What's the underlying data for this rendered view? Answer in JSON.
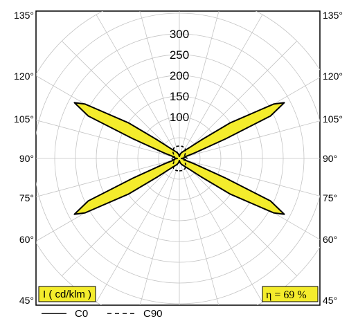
{
  "chart_data": {
    "type": "polar",
    "title": "",
    "unit_label": "I ( cd/klm )",
    "efficiency_label": "η = 69 %",
    "radial_ticks": [
      100,
      150,
      200,
      250,
      300
    ],
    "radial_tick_labels": [
      "100",
      "150",
      "200",
      "250",
      "300"
    ],
    "radial_max": 400,
    "angle_labels_left": [
      "135°",
      "120°",
      "105°",
      "90°",
      "75°",
      "60°",
      "45°"
    ],
    "angle_labels_right": [
      "135°",
      "120°",
      "105°",
      "90°",
      "75°",
      "60°",
      "45°"
    ],
    "grid": true,
    "legend_position": "bottom-left",
    "series": [
      {
        "name": "C0",
        "style": "solid",
        "fill": "#f4ec2c",
        "angles": [
          0,
          10,
          20,
          30,
          40,
          50,
          55,
          60,
          62,
          65,
          67,
          70,
          75,
          80,
          85,
          90,
          95,
          100,
          105,
          110,
          113,
          115,
          118,
          120,
          125,
          130,
          140,
          150,
          160,
          170,
          180
        ],
        "values": [
          5,
          10,
          15,
          20,
          30,
          70,
          150,
          262,
          286,
          242,
          122,
          40,
          12,
          12,
          10,
          5,
          10,
          12,
          12,
          40,
          122,
          242,
          286,
          262,
          150,
          70,
          30,
          20,
          15,
          10,
          5
        ]
      },
      {
        "name": "C90",
        "style": "dashed",
        "angles": [
          0,
          15,
          30,
          45,
          60,
          70,
          80,
          90,
          100,
          110,
          120,
          135,
          150,
          165,
          180
        ],
        "values": [
          30,
          30,
          28,
          22,
          15,
          12,
          15,
          20,
          15,
          12,
          15,
          22,
          28,
          30,
          30
        ]
      }
    ]
  },
  "legend": [
    {
      "label": "C0"
    },
    {
      "label": "C90"
    }
  ]
}
